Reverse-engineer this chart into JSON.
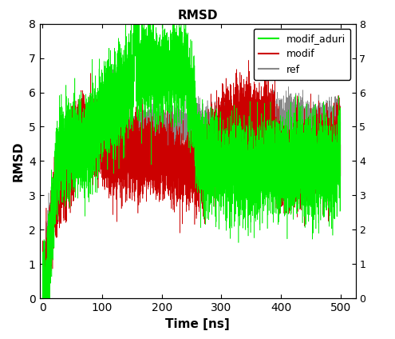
{
  "title": "RMSD",
  "xlabel": "Time [ns]",
  "ylabel": "RMSD",
  "xlim": [
    -5,
    525
  ],
  "ylim": [
    0,
    8
  ],
  "xticks": [
    0,
    100,
    200,
    300,
    400,
    500
  ],
  "yticks": [
    0,
    1,
    2,
    3,
    4,
    5,
    6,
    7,
    8
  ],
  "legend_labels": [
    "modif_aduri",
    "modif",
    "ref"
  ],
  "colors": {
    "modif_aduri": "#00ee00",
    "modif": "#cc0000",
    "ref": "#888888"
  },
  "seed": 42,
  "n_points": 10000,
  "background_color": "#ffffff",
  "title_fontsize": 11,
  "label_fontsize": 11,
  "legend_fontsize": 9
}
